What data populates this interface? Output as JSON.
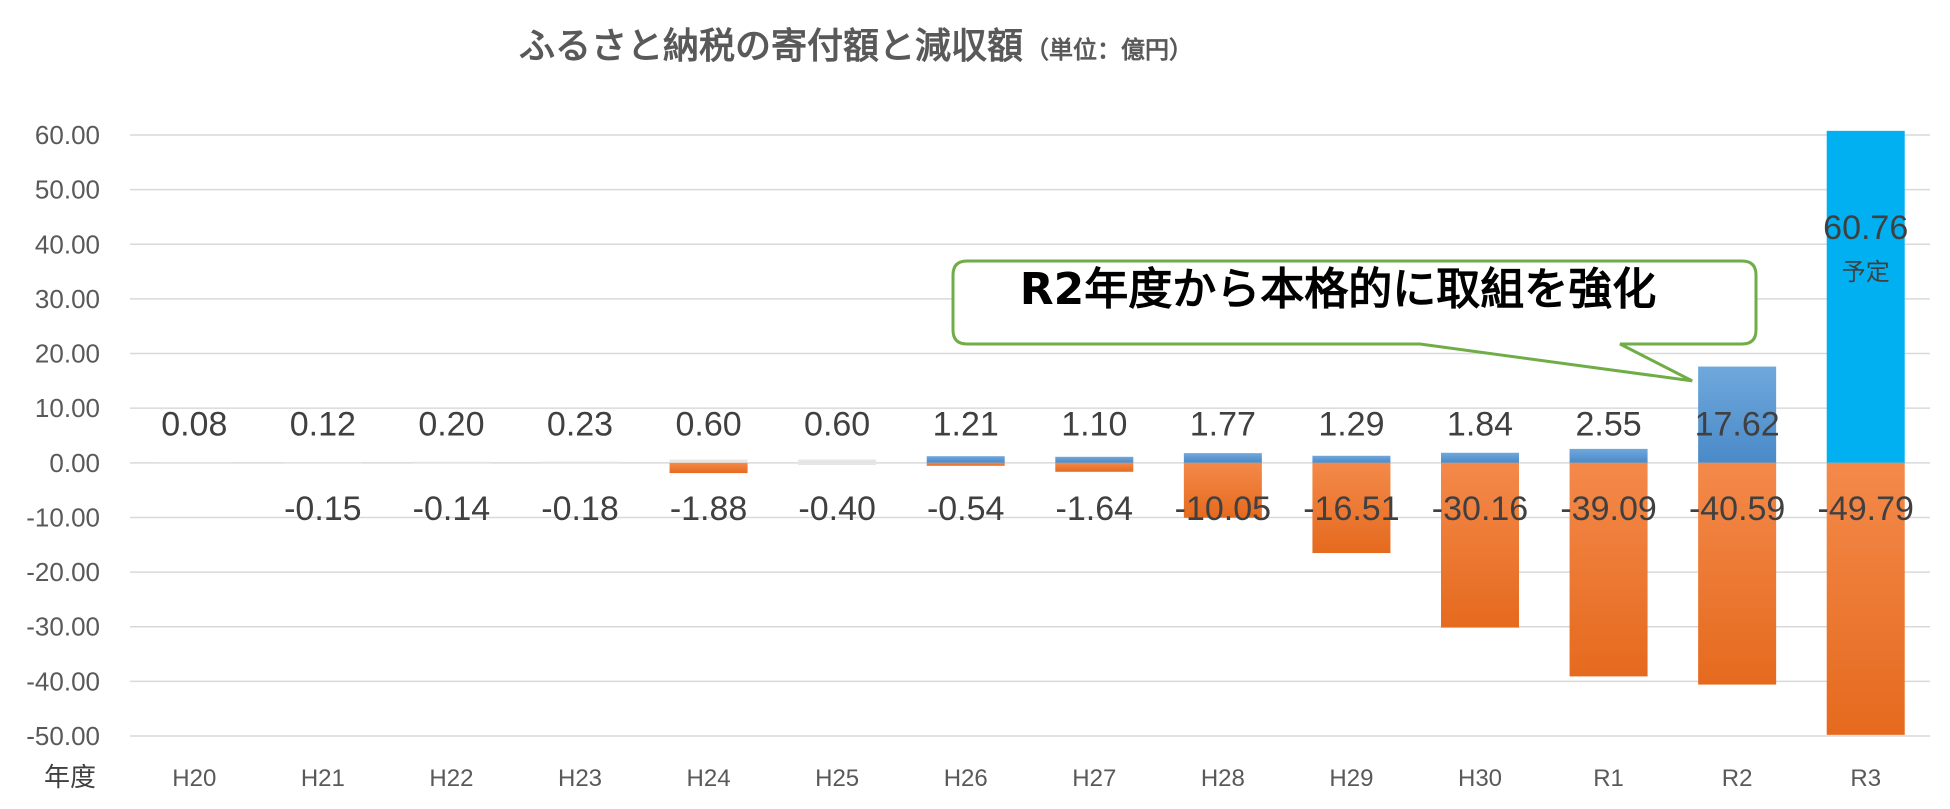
{
  "chart_data": {
    "type": "bar",
    "title": "ふるさと納税の寄付額と減収額",
    "title_unit": "（単位：億円）",
    "xlabel": "年度",
    "ylabel": "",
    "ylim": [
      -50,
      60
    ],
    "ytick_step": 10,
    "grid": true,
    "categories": [
      "H20",
      "H21",
      "H22",
      "H23",
      "H24",
      "H25",
      "H26",
      "H27",
      "H28",
      "H29",
      "H30",
      "R1",
      "R2",
      "R3"
    ],
    "series": [
      {
        "color": "#5B9BD5",
        "values": [
          0.08,
          0.12,
          0.2,
          0.23,
          0.6,
          0.6,
          1.21,
          1.1,
          1.77,
          1.29,
          1.84,
          2.55,
          17.62,
          60.76
        ],
        "labels": [
          "0.08",
          "0.12",
          "0.20",
          "0.23",
          "0.60",
          "0.60",
          "1.21",
          "1.10",
          "1.77",
          "1.29",
          "1.84",
          "2.55",
          "17.62",
          "60.76"
        ]
      },
      {
        "color": "#ED7D31",
        "values": [
          0,
          -0.15,
          -0.14,
          -0.18,
          -1.88,
          -0.4,
          -0.54,
          -1.64,
          -10.05,
          -16.51,
          -30.16,
          -39.09,
          -40.59,
          -49.79
        ],
        "labels": [
          "",
          "-0.15",
          "-0.14",
          "-0.18",
          "-1.88",
          "-0.40",
          "-0.54",
          "-1.64",
          "-10.05",
          "-16.51",
          "-30.16",
          "-39.09",
          "-40.59",
          "-49.79"
        ]
      }
    ],
    "highlight": {
      "category": "R3",
      "color": "#00B0F0",
      "note": "予定"
    },
    "annotation": {
      "text": "R2年度から本格的に取組を強化",
      "border_color": "#70AD47",
      "points_to": "R2"
    }
  }
}
